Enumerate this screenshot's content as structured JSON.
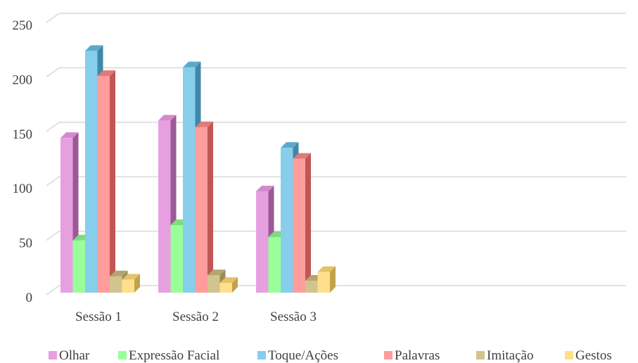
{
  "chart_data": {
    "type": "bar",
    "categories": [
      "Sessão 1",
      "Sessão 2",
      "Sessão 3",
      "",
      "",
      ""
    ],
    "series": [
      {
        "name": "Olhar",
        "values": [
          142,
          158,
          93,
          null,
          null,
          null
        ],
        "color": "#E6A0E0",
        "shade": "#9B5A96",
        "top": "#D38ACD"
      },
      {
        "name": "Expressão Facial",
        "values": [
          48,
          62,
          51,
          null,
          null,
          null
        ],
        "color": "#99FF99",
        "shade": "#5CB85C",
        "top": "#7EDC7E"
      },
      {
        "name": "Toque/Ações",
        "values": [
          222,
          207,
          133,
          null,
          null,
          null
        ],
        "color": "#87CEEB",
        "shade": "#3F88A8",
        "top": "#5DA9CC"
      },
      {
        "name": "Palavras",
        "values": [
          199,
          152,
          123,
          null,
          null,
          null
        ],
        "color": "#FF9C9C",
        "shade": "#C05656",
        "top": "#E07A7A"
      },
      {
        "name": "Imitação",
        "values": [
          15,
          16,
          11,
          null,
          null,
          null
        ],
        "color": "#D2C48E",
        "shade": "#9A8C55",
        "top": "#B3A56F"
      },
      {
        "name": "Gestos",
        "values": [
          12,
          9,
          19,
          null,
          null,
          null
        ],
        "color": "#FFE08A",
        "shade": "#C2A24A",
        "top": "#E3C26A"
      }
    ],
    "ylim": [
      0,
      250
    ],
    "yticks": [
      0,
      50,
      100,
      150,
      200,
      250
    ],
    "grid": true,
    "legend": "bottom",
    "style": "3d-clustered-column"
  }
}
